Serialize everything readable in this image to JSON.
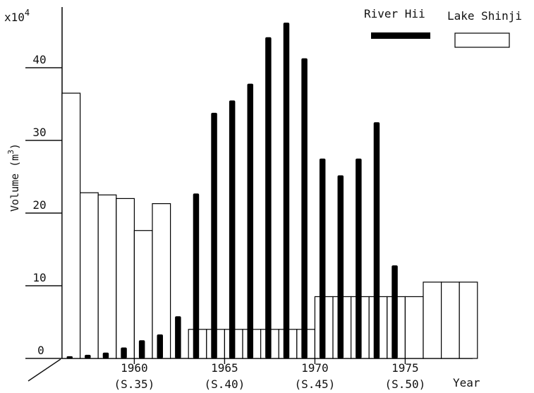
{
  "chart_data": {
    "type": "bar",
    "xlabel": "Year",
    "ylabel": "Volume (m",
    "ylabel_sup": "3",
    "ylabel_close": ")",
    "y_multiplier_base": "x10",
    "y_multiplier_exp": "4",
    "ylim": [
      0,
      47
    ],
    "grid": false,
    "legend_position": "top-right",
    "years": [
      1956,
      1957,
      1958,
      1959,
      1960,
      1961,
      1962,
      1963,
      1964,
      1965,
      1966,
      1967,
      1968,
      1969,
      1970,
      1971,
      1972,
      1973,
      1974,
      1975,
      1976,
      1977,
      1978
    ],
    "y_ticks": [
      {
        "value": 0,
        "label": "0"
      },
      {
        "value": 10,
        "label": "10"
      },
      {
        "value": 20,
        "label": "20"
      },
      {
        "value": 30,
        "label": "30"
      },
      {
        "value": 40,
        "label": "40"
      }
    ],
    "x_ticks": [
      {
        "year": 1960,
        "label": "1960",
        "sublabel": "(S.35)"
      },
      {
        "year": 1965,
        "label": "1965",
        "sublabel": "(S.40)"
      },
      {
        "year": 1970,
        "label": "1970",
        "sublabel": "(S.45)"
      },
      {
        "year": 1975,
        "label": "1975",
        "sublabel": "(S.50)"
      }
    ],
    "series": [
      {
        "name": "River Hii",
        "style": "solid",
        "color": "#000000",
        "values": [
          0.3,
          0.5,
          0.8,
          1.5,
          2.5,
          3.3,
          5.8,
          22.7,
          33.8,
          35.5,
          37.8,
          44.2,
          46.2,
          41.3,
          27.5,
          25.2,
          27.5,
          32.5,
          12.8,
          null,
          null,
          null,
          null
        ]
      },
      {
        "name": "Lake Shinji",
        "style": "outline",
        "color": "#000000",
        "values": [
          36.5,
          22.8,
          22.5,
          22.0,
          17.6,
          21.3,
          null,
          4.0,
          4.0,
          4.0,
          4.0,
          4.0,
          4.0,
          4.0,
          8.5,
          8.5,
          8.5,
          8.5,
          8.5,
          8.5,
          10.5,
          10.5,
          10.5
        ]
      }
    ]
  }
}
